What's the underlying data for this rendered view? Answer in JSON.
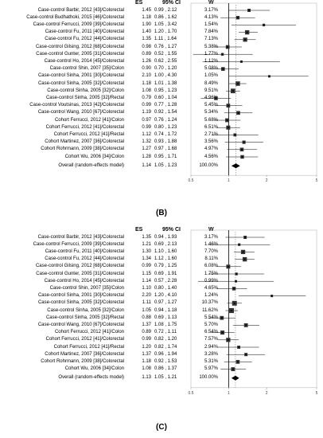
{
  "headers": {
    "es": "ES",
    "ci": "95% CI",
    "w": "W"
  },
  "panels": [
    {
      "label": "(B)",
      "axis": {
        "ticks": [
          "0.5",
          "1",
          "2",
          "5"
        ],
        "tick_values": [
          0.5,
          1,
          2,
          5
        ],
        "scale": "log",
        "xlim": [
          0.5,
          5
        ]
      },
      "studies": [
        {
          "name": "Case-control Barbir, 2012 [43]/Colorectal",
          "es": "1.45",
          "ci": "0.99 , 2.12",
          "w": "3.17%"
        },
        {
          "name": "Case-control Budhathoki, 2015 [46]/Colorectal",
          "es": "1.18",
          "ci": "0.86 , 1.62",
          "w": "4.13%"
        },
        {
          "name": "Case-control Ferrucci, 2009 [39]/Colorectal",
          "es": "1.90",
          "ci": "1.05 , 3.42",
          "w": "1.54%"
        },
        {
          "name": "Case-control Fu, 2011 [40]/Colorectal",
          "es": "1.40",
          "ci": "1.20 , 1.70",
          "w": "7.84%"
        },
        {
          "name": "Case-control Fu, 2012 [44]/Colorectal",
          "es": "1.35",
          "ci": "1.11 , 1.64",
          "w": "7.13%"
        },
        {
          "name": "Case-control Gilsing, 2012 [68]/Colorectal",
          "es": "0.98",
          "ci": "0.76 , 1.27",
          "w": "5.38%"
        },
        {
          "name": "Case-control Gunter, 2005 [31]/Colorectal",
          "es": "0.89",
          "ci": "0.52 , 1.55",
          "w": "1.77%"
        },
        {
          "name": "Case-control Ho, 2014 [45]/Colorectal",
          "es": "1.26",
          "ci": "0.62 , 2.55",
          "w": "1.12%"
        },
        {
          "name": "Case-control Shin, 2007 [35]/Colon",
          "es": "0.90",
          "ci": "0.70 , 1.20",
          "w": "5.08%"
        },
        {
          "name": "Case-control Sinha, 2001 [30]/Colorectal",
          "es": "2.10",
          "ci": "1.00 , 4.30",
          "w": "1.05%"
        },
        {
          "name": "Case-control Sinha, 2005 [32]/Colorectal",
          "es": "1.18",
          "ci": "1.01 , 1.38",
          "w": "8.49%"
        },
        {
          "name": "Case-control Sinha, 2005 [32]/Colon",
          "es": "1.08",
          "ci": "0.95 , 1.23",
          "w": "9.51%"
        },
        {
          "name": "Case-control Sinha, 2005 [32]/Rectal",
          "es": "0.79",
          "ci": "0.60 , 1.04",
          "w": "4.96%"
        },
        {
          "name": "Case-control Voutsinas, 2013 [42]/Colorectal",
          "es": "0.99",
          "ci": "0.77 , 1.28",
          "w": "5.45%"
        },
        {
          "name": "Case-control Wang, 2010 [67]/Colorectal",
          "es": "1.19",
          "ci": "0.92 , 1.54",
          "w": "5.34%"
        },
        {
          "name": "Cohort Ferrucci, 2012 [41]/Colon",
          "es": "0.97",
          "ci": "0.76 , 1.24",
          "w": "5.68%"
        },
        {
          "name": "Cohort Ferrucci, 2012 [41]/Colorectal",
          "es": "0.99",
          "ci": "0.80 , 1.23",
          "w": "6.51%"
        },
        {
          "name": "Cohort Ferrucci, 2012 [41]/Rectal",
          "es": "1.12",
          "ci": "0.74 , 1.72",
          "w": "2.71%"
        },
        {
          "name": "Cohort Martinez, 2007 [36]/Colorectal",
          "es": "1.32",
          "ci": "0.93 , 1.88",
          "w": "3.56%"
        },
        {
          "name": "Cohort Rohrmann, 2009 [38]/Colorectal",
          "es": "1.27",
          "ci": "0.97 , 1.68",
          "w": "4.97%"
        },
        {
          "name": "Cohort Wu, 2006 [34]/Colon",
          "es": "1.28",
          "ci": "0.95 , 1.71",
          "w": "4.56%"
        }
      ],
      "overall": {
        "name": "Overall (random-effects model)",
        "es": "1.14",
        "ci": "1.05 , 1.23",
        "w": "100.00%"
      }
    },
    {
      "label": "(C)",
      "axis": {
        "ticks": [
          "0.5",
          "1",
          "2",
          "5"
        ],
        "tick_values": [
          0.5,
          1,
          2,
          5
        ],
        "scale": "log",
        "xlim": [
          0.5,
          5
        ]
      },
      "studies": [
        {
          "name": "Case-control Barbir, 2012 [43]/Colorectal",
          "es": "1.35",
          "ci": "0.94 , 1.93",
          "w": "3.17%"
        },
        {
          "name": "Case-control Ferrucci, 2009 [39]/Colorectal",
          "es": "1.21",
          "ci": "0.69 , 2.13",
          "w": "1.46%"
        },
        {
          "name": "Case-control Fu, 2011 [40]/Colorectal",
          "es": "1.30",
          "ci": "1.10 , 1.60",
          "w": "7.70%"
        },
        {
          "name": "Case-control Fu, 2012 [44]/Colorectal",
          "es": "1.34",
          "ci": "1.12 , 1.60",
          "w": "8.11%"
        },
        {
          "name": "Case-control Gilsing, 2012 [68]/Colorectal",
          "es": "0.99",
          "ci": "0.79 , 1.25",
          "w": "6.08%"
        },
        {
          "name": "Case-control Gunter, 2005 [31]/Colorectal",
          "es": "1.15",
          "ci": "0.69 , 1.91",
          "w": "1.75%"
        },
        {
          "name": "Case-control Ho, 2014 [45]/Colorectal",
          "es": "1.14",
          "ci": "0.57 , 2.28",
          "w": "0.99%"
        },
        {
          "name": "Case-control Shin, 2007 [35]/Colon",
          "es": "1.10",
          "ci": "0.80 , 1.40",
          "w": "4.65%"
        },
        {
          "name": "Case-control Sinha, 2001 [30]/Colorectal",
          "es": "2.20",
          "ci": "1.20 , 4.10",
          "w": "1.24%"
        },
        {
          "name": "Case-control Sinha, 2005 [32]/Colorectal",
          "es": "1.11",
          "ci": "0.97 , 1.27",
          "w": "10.37%"
        },
        {
          "name": "Case-control Sinha, 2005 [32]/Colon",
          "es": "1.05",
          "ci": "0.94 , 1.18",
          "w": "11.62%"
        },
        {
          "name": "Case-control Sinha, 2005 [32]/Rectal",
          "es": "0.88",
          "ci": "0.69 , 1.13",
          "w": "5.54%"
        },
        {
          "name": "Case-control Wang, 2010 [67]/Colorectal",
          "es": "1.37",
          "ci": "1.08 , 1.75",
          "w": "5.70%"
        },
        {
          "name": "Cohort Ferrucci, 2012 [41]/Colon",
          "es": "0.89",
          "ci": "0.72 , 1.11",
          "w": "6.54%"
        },
        {
          "name": "Cohort Ferrucci, 2012 [41]/Colorectal",
          "es": "0.99",
          "ci": "0.82 , 1.20",
          "w": "7.57%"
        },
        {
          "name": "Cohort Ferrucci, 2012 [41]/Rectal",
          "es": "1.20",
          "ci": "0.82 , 1.74",
          "w": "2.94%"
        },
        {
          "name": "Cohort Martinez, 2007 [36]/Colorectal",
          "es": "1.37",
          "ci": "0.96 , 1.94",
          "w": "3.28%"
        },
        {
          "name": "Cohort Rohrmann, 2009 [38]/Colorectal",
          "es": "1.18",
          "ci": "0.92 , 1.53",
          "w": "5.31%"
        },
        {
          "name": "Cohort Wu, 2006 [34]/Colon",
          "es": "1.08",
          "ci": "0.86 , 1.37",
          "w": "5.97%"
        }
      ],
      "overall": {
        "name": "Overall (random-effects model)",
        "es": "1.13",
        "ci": "1.05 , 1.21",
        "w": "100.00%"
      }
    }
  ],
  "chart_data": [
    {
      "type": "forest",
      "panel": "(B)",
      "x_scale": "log",
      "xlim": [
        0.5,
        5
      ],
      "xticks": [
        0.5,
        1,
        2,
        5
      ],
      "reference_line": 1,
      "points": [
        {
          "label": "Case-control Barbir, 2012 [43]/Colorectal",
          "es": 1.45,
          "lo": 0.99,
          "hi": 2.12,
          "w": 3.17
        },
        {
          "label": "Case-control Budhathoki, 2015 [46]/Colorectal",
          "es": 1.18,
          "lo": 0.86,
          "hi": 1.62,
          "w": 4.13
        },
        {
          "label": "Case-control Ferrucci, 2009 [39]/Colorectal",
          "es": 1.9,
          "lo": 1.05,
          "hi": 3.42,
          "w": 1.54
        },
        {
          "label": "Case-control Fu, 2011 [40]/Colorectal",
          "es": 1.4,
          "lo": 1.2,
          "hi": 1.7,
          "w": 7.84
        },
        {
          "label": "Case-control Fu, 2012 [44]/Colorectal",
          "es": 1.35,
          "lo": 1.11,
          "hi": 1.64,
          "w": 7.13
        },
        {
          "label": "Case-control Gilsing, 2012 [68]/Colorectal",
          "es": 0.98,
          "lo": 0.76,
          "hi": 1.27,
          "w": 5.38
        },
        {
          "label": "Case-control Gunter, 2005 [31]/Colorectal",
          "es": 0.89,
          "lo": 0.52,
          "hi": 1.55,
          "w": 1.77
        },
        {
          "label": "Case-control Ho, 2014 [45]/Colorectal",
          "es": 1.26,
          "lo": 0.62,
          "hi": 2.55,
          "w": 1.12
        },
        {
          "label": "Case-control Shin, 2007 [35]/Colon",
          "es": 0.9,
          "lo": 0.7,
          "hi": 1.2,
          "w": 5.08
        },
        {
          "label": "Case-control Sinha, 2001 [30]/Colorectal",
          "es": 2.1,
          "lo": 1.0,
          "hi": 4.3,
          "w": 1.05
        },
        {
          "label": "Case-control Sinha, 2005 [32]/Colorectal",
          "es": 1.18,
          "lo": 1.01,
          "hi": 1.38,
          "w": 8.49
        },
        {
          "label": "Case-control Sinha, 2005 [32]/Colon",
          "es": 1.08,
          "lo": 0.95,
          "hi": 1.23,
          "w": 9.51
        },
        {
          "label": "Case-control Sinha, 2005 [32]/Rectal",
          "es": 0.79,
          "lo": 0.6,
          "hi": 1.04,
          "w": 4.96
        },
        {
          "label": "Case-control Voutsinas, 2013 [42]/Colorectal",
          "es": 0.99,
          "lo": 0.77,
          "hi": 1.28,
          "w": 5.45
        },
        {
          "label": "Case-control Wang, 2010 [67]/Colorectal",
          "es": 1.19,
          "lo": 0.92,
          "hi": 1.54,
          "w": 5.34
        },
        {
          "label": "Cohort Ferrucci, 2012 [41]/Colon",
          "es": 0.97,
          "lo": 0.76,
          "hi": 1.24,
          "w": 5.68
        },
        {
          "label": "Cohort Ferrucci, 2012 [41]/Colorectal",
          "es": 0.99,
          "lo": 0.8,
          "hi": 1.23,
          "w": 6.51
        },
        {
          "label": "Cohort Ferrucci, 2012 [41]/Rectal",
          "es": 1.12,
          "lo": 0.74,
          "hi": 1.72,
          "w": 2.71
        },
        {
          "label": "Cohort Martinez, 2007 [36]/Colorectal",
          "es": 1.32,
          "lo": 0.93,
          "hi": 1.88,
          "w": 3.56
        },
        {
          "label": "Cohort Rohrmann, 2009 [38]/Colorectal",
          "es": 1.27,
          "lo": 0.97,
          "hi": 1.68,
          "w": 4.97
        },
        {
          "label": "Cohort Wu, 2006 [34]/Colon",
          "es": 1.28,
          "lo": 0.95,
          "hi": 1.71,
          "w": 4.56
        }
      ],
      "overall": {
        "label": "Overall (random-effects model)",
        "es": 1.14,
        "lo": 1.05,
        "hi": 1.23,
        "w": 100.0
      }
    },
    {
      "type": "forest",
      "panel": "(C)",
      "x_scale": "log",
      "xlim": [
        0.5,
        5
      ],
      "xticks": [
        0.5,
        1,
        2,
        5
      ],
      "reference_line": 1,
      "points": [
        {
          "label": "Case-control Barbir, 2012 [43]/Colorectal",
          "es": 1.35,
          "lo": 0.94,
          "hi": 1.93,
          "w": 3.17
        },
        {
          "label": "Case-control Ferrucci, 2009 [39]/Colorectal",
          "es": 1.21,
          "lo": 0.69,
          "hi": 2.13,
          "w": 1.46
        },
        {
          "label": "Case-control Fu, 2011 [40]/Colorectal",
          "es": 1.3,
          "lo": 1.1,
          "hi": 1.6,
          "w": 7.7
        },
        {
          "label": "Case-control Fu, 2012 [44]/Colorectal",
          "es": 1.34,
          "lo": 1.12,
          "hi": 1.6,
          "w": 8.11
        },
        {
          "label": "Case-control Gilsing, 2012 [68]/Colorectal",
          "es": 0.99,
          "lo": 0.79,
          "hi": 1.25,
          "w": 6.08
        },
        {
          "label": "Case-control Gunter, 2005 [31]/Colorectal",
          "es": 1.15,
          "lo": 0.69,
          "hi": 1.91,
          "w": 1.75
        },
        {
          "label": "Case-control Ho, 2014 [45]/Colorectal",
          "es": 1.14,
          "lo": 0.57,
          "hi": 2.28,
          "w": 0.99
        },
        {
          "label": "Case-control Shin, 2007 [35]/Colon",
          "es": 1.1,
          "lo": 0.8,
          "hi": 1.4,
          "w": 4.65
        },
        {
          "label": "Case-control Sinha, 2001 [30]/Colorectal",
          "es": 2.2,
          "lo": 1.2,
          "hi": 4.1,
          "w": 1.24
        },
        {
          "label": "Case-control Sinha, 2005 [32]/Colorectal",
          "es": 1.11,
          "lo": 0.97,
          "hi": 1.27,
          "w": 10.37
        },
        {
          "label": "Case-control Sinha, 2005 [32]/Colon",
          "es": 1.05,
          "lo": 0.94,
          "hi": 1.18,
          "w": 11.62
        },
        {
          "label": "Case-control Sinha, 2005 [32]/Rectal",
          "es": 0.88,
          "lo": 0.69,
          "hi": 1.13,
          "w": 5.54
        },
        {
          "label": "Case-control Wang, 2010 [67]/Colorectal",
          "es": 1.37,
          "lo": 1.08,
          "hi": 1.75,
          "w": 5.7
        },
        {
          "label": "Cohort Ferrucci, 2012 [41]/Colon",
          "es": 0.89,
          "lo": 0.72,
          "hi": 1.11,
          "w": 6.54
        },
        {
          "label": "Cohort Ferrucci, 2012 [41]/Colorectal",
          "es": 0.99,
          "lo": 0.82,
          "hi": 1.2,
          "w": 7.57
        },
        {
          "label": "Cohort Ferrucci, 2012 [41]/Rectal",
          "es": 1.2,
          "lo": 0.82,
          "hi": 1.74,
          "w": 2.94
        },
        {
          "label": "Cohort Martinez, 2007 [36]/Colorectal",
          "es": 1.37,
          "lo": 0.96,
          "hi": 1.94,
          "w": 3.28
        },
        {
          "label": "Cohort Rohrmann, 2009 [38]/Colorectal",
          "es": 1.18,
          "lo": 0.92,
          "hi": 1.53,
          "w": 5.31
        },
        {
          "label": "Cohort Wu, 2006 [34]/Colon",
          "es": 1.08,
          "lo": 0.86,
          "hi": 1.37,
          "w": 5.97
        }
      ],
      "overall": {
        "label": "Overall (random-effects model)",
        "es": 1.13,
        "lo": 1.05,
        "hi": 1.21,
        "w": 100.0
      }
    }
  ]
}
